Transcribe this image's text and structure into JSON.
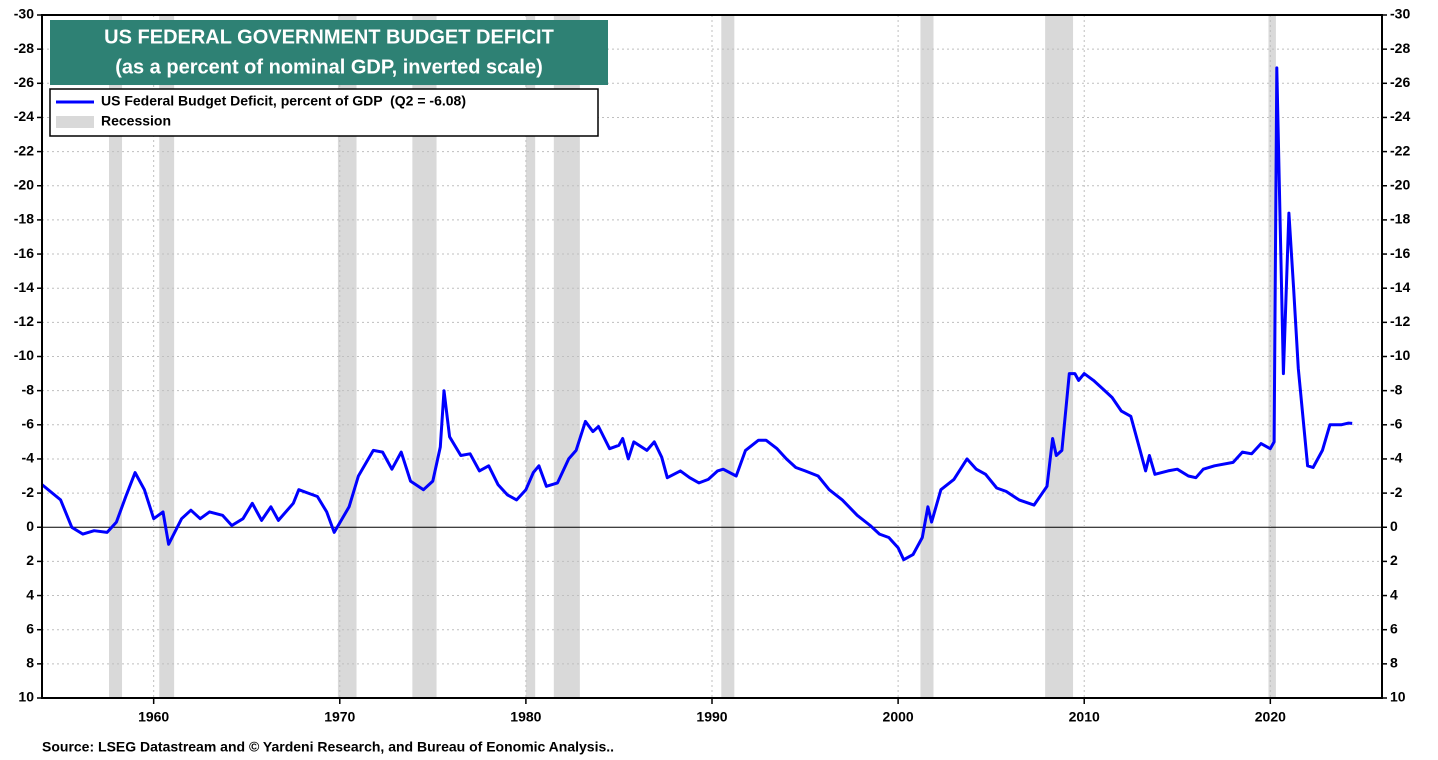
{
  "chart_data": {
    "type": "line",
    "title": "US FEDERAL GOVERNMENT BUDGET DEFICIT",
    "subtitle": "(as a percent of nominal GDP, inverted scale)",
    "source": "Source: LSEG Datastream and © Yardeni Research, and Bureau of Eonomic Analysis..",
    "xlim": [
      1954,
      2026
    ],
    "xticks": [
      1960,
      1970,
      1980,
      1990,
      2000,
      2010,
      2020
    ],
    "ylim": [
      -30,
      10
    ],
    "y_inverted": true,
    "yticks": [
      -30,
      -28,
      -26,
      -24,
      -22,
      -20,
      -18,
      -16,
      -14,
      -12,
      -10,
      -8,
      -6,
      -4,
      -2,
      0,
      2,
      4,
      6,
      8,
      10
    ],
    "grid": true,
    "legend": "upper left",
    "recession": {
      "name": "Recession",
      "color": "#d9d9d9",
      "periods": [
        [
          1957.6,
          1958.3
        ],
        [
          1960.3,
          1961.1
        ],
        [
          1969.9,
          1970.9
        ],
        [
          1973.9,
          1975.2
        ],
        [
          1980.0,
          1980.5
        ],
        [
          1981.5,
          1982.9
        ],
        [
          1990.5,
          1991.2
        ],
        [
          2001.2,
          2001.9
        ],
        [
          2007.9,
          2009.4
        ],
        [
          2019.9,
          2020.3
        ]
      ]
    },
    "x": [
      1954.0,
      1955.0,
      1955.6,
      1956.2,
      1956.8,
      1957.5,
      1958.0,
      1958.5,
      1959.0,
      1959.5,
      1960.0,
      1960.5,
      1960.8,
      1961.5,
      1962.0,
      1962.5,
      1963.0,
      1963.7,
      1964.2,
      1964.8,
      1965.3,
      1965.8,
      1966.3,
      1966.7,
      1967.5,
      1967.8,
      1968.3,
      1968.8,
      1969.3,
      1969.7,
      1970.5,
      1971.0,
      1971.8,
      1972.3,
      1972.8,
      1973.3,
      1973.8,
      1974.5,
      1975.0,
      1975.4,
      1975.6,
      1975.9,
      1976.5,
      1977.0,
      1977.5,
      1978.0,
      1978.5,
      1979.0,
      1979.5,
      1980.0,
      1980.4,
      1980.7,
      1981.1,
      1981.7,
      1982.3,
      1982.7,
      1983.2,
      1983.6,
      1983.9,
      1984.5,
      1985.0,
      1985.2,
      1985.5,
      1985.8,
      1986.5,
      1986.9,
      1987.3,
      1987.6,
      1988.3,
      1988.8,
      1989.3,
      1989.8,
      1990.3,
      1990.6,
      1991.3,
      1991.8,
      1992.5,
      1992.9,
      1993.5,
      1994.0,
      1994.5,
      1995.0,
      1995.7,
      1996.3,
      1997.0,
      1997.8,
      1998.5,
      1999.0,
      1999.5,
      2000.0,
      2000.3,
      2000.8,
      2001.3,
      2001.6,
      2001.8,
      2002.3,
      2003.0,
      2003.7,
      2004.2,
      2004.7,
      2005.3,
      2005.8,
      2006.5,
      2007.3,
      2008.0,
      2008.3,
      2008.5,
      2008.8,
      2009.2,
      2009.5,
      2009.7,
      2010.0,
      2010.5,
      2011.0,
      2011.5,
      2012.0,
      2012.5,
      2013.0,
      2013.3,
      2013.5,
      2013.8,
      2014.5,
      2015.0,
      2015.6,
      2016.0,
      2016.4,
      2017.0,
      2018.0,
      2018.5,
      2019.0,
      2019.5,
      2020.0,
      2020.2,
      2020.35,
      2020.7,
      2021.0,
      2021.25,
      2021.5,
      2022.0,
      2022.3,
      2022.8,
      2023.2,
      2023.8,
      2024.2,
      2024.4
    ],
    "series": [
      {
        "name": "US Federal Budget Deficit, percent of GDP  (Q2 = -6.08)",
        "color": "#0000ff",
        "values": [
          -2.5,
          -1.6,
          0,
          0.4,
          0.2,
          0.3,
          -0.3,
          -1.8,
          -3.2,
          -2.2,
          -0.5,
          -0.9,
          1.0,
          -0.5,
          -1.0,
          -0.5,
          -0.9,
          -0.7,
          -0.1,
          -0.5,
          -1.4,
          -0.4,
          -1.2,
          -0.4,
          -1.4,
          -2.2,
          -2.0,
          -1.8,
          -0.9,
          0.3,
          -1.2,
          -3.0,
          -4.5,
          -4.4,
          -3.4,
          -4.4,
          -2.7,
          -2.2,
          -2.7,
          -4.7,
          -8.0,
          -5.3,
          -4.2,
          -4.3,
          -3.3,
          -3.6,
          -2.5,
          -1.9,
          -1.6,
          -2.2,
          -3.2,
          -3.6,
          -2.4,
          -2.6,
          -4.0,
          -4.5,
          -6.2,
          -5.6,
          -5.9,
          -4.6,
          -4.8,
          -5.2,
          -4.0,
          -5.0,
          -4.5,
          -5.0,
          -4.1,
          -2.9,
          -3.3,
          -2.9,
          -2.6,
          -2.8,
          -3.3,
          -3.4,
          -3.0,
          -4.5,
          -5.1,
          -5.1,
          -4.6,
          -4.0,
          -3.5,
          -3.3,
          -3.0,
          -2.2,
          -1.6,
          -0.7,
          -0.1,
          0.4,
          0.6,
          1.2,
          1.9,
          1.6,
          0.6,
          -1.2,
          -0.3,
          -2.2,
          -2.8,
          -4.0,
          -3.4,
          -3.1,
          -2.3,
          -2.1,
          -1.6,
          -1.3,
          -2.4,
          -5.2,
          -4.2,
          -4.5,
          -9.0,
          -9.0,
          -8.6,
          -9.0,
          -8.6,
          -8.1,
          -7.6,
          -6.8,
          -6.5,
          -4.5,
          -3.3,
          -4.2,
          -3.1,
          -3.3,
          -3.4,
          -3.0,
          -2.9,
          -3.4,
          -3.6,
          -3.8,
          -4.4,
          -4.3,
          -4.9,
          -4.6,
          -5.0,
          -26.9,
          -9.0,
          -18.4,
          -14.0,
          -9.3,
          -3.6,
          -3.5,
          -4.5,
          -6.0,
          -6.0,
          -6.1,
          -6.08
        ]
      }
    ]
  }
}
